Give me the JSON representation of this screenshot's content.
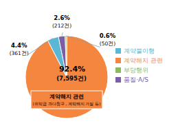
{
  "chart_data": {
    "type": "pie",
    "categories": [
      "계약해지 관련",
      "계약불이행",
      "품질·A/S",
      "부당행위"
    ],
    "values": [
      92.4,
      4.4,
      2.6,
      0.6
    ],
    "value_labels": [
      "92.4%",
      "4.4%",
      "2.6%",
      "0.6%"
    ],
    "counts": [
      7595,
      361,
      212,
      50
    ],
    "count_labels": [
      "(7,595건)",
      "(361건)",
      "(212건)",
      "(50건)"
    ],
    "colors": [
      "#F5863F",
      "#5BB8D4",
      "#7B5EA7",
      "#8BBB5A"
    ],
    "annotations": [
      "계약해지 관련",
      "(위약금 과다청구 , 계약해지 거절 등)"
    ],
    "legend": "right"
  }
}
